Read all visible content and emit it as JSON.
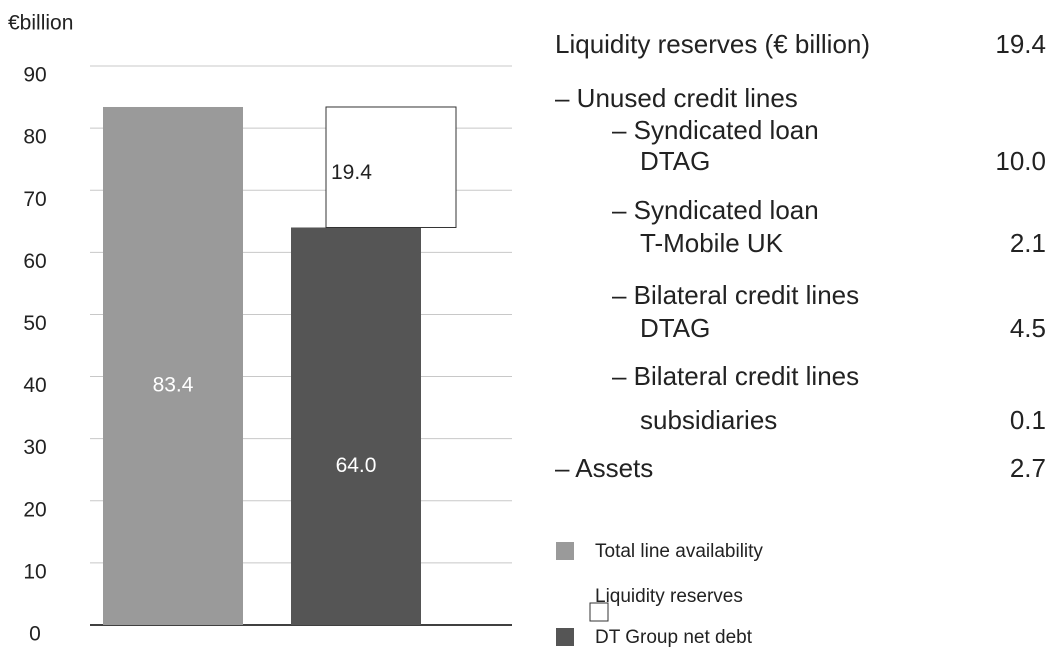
{
  "chart_data": {
    "type": "bar",
    "stacked": true,
    "y_label": "€billion",
    "categories": [
      null,
      null
    ],
    "series": [
      {
        "name": "Total line availability",
        "color": "#9a9a9a",
        "values": [
          83.4,
          null
        ],
        "value_labels": [
          "83.4",
          null
        ]
      },
      {
        "name": "DT Group net debt",
        "color": "#555555",
        "values": [
          null,
          64.0
        ],
        "value_labels": [
          null,
          "64.0"
        ]
      },
      {
        "name": "Liquidity reserves",
        "color": "#ffffff",
        "values": [
          null,
          19.4
        ],
        "value_labels": [
          null,
          "19.4"
        ]
      }
    ],
    "legend_order": [
      0,
      2,
      1
    ],
    "ylim": [
      0,
      90
    ],
    "yticks": [
      0,
      10,
      20,
      30,
      40,
      50,
      60,
      70,
      80,
      90
    ],
    "grid": true
  },
  "breakdown": {
    "title": "Liquidity reserves (€ billion)",
    "value": "19.4",
    "items": [
      {
        "level": 1,
        "lines": [
          "– Unused credit lines"
        ],
        "value": null
      },
      {
        "level": 2,
        "lines": [
          "– Syndicated loan",
          "DTAG"
        ],
        "value": "10.0"
      },
      {
        "level": 2,
        "lines": [
          "– Syndicated loan",
          "T-Mobile UK"
        ],
        "value": "2.1"
      },
      {
        "level": 2,
        "lines": [
          "– Bilateral credit lines",
          "DTAG"
        ],
        "value": "4.5"
      },
      {
        "level": 2,
        "lines": [
          "– Bilateral credit lines",
          "subsidiaries"
        ],
        "value": "0.1"
      },
      {
        "level": 1,
        "lines": [
          "– Assets"
        ],
        "value": "2.7"
      }
    ]
  }
}
